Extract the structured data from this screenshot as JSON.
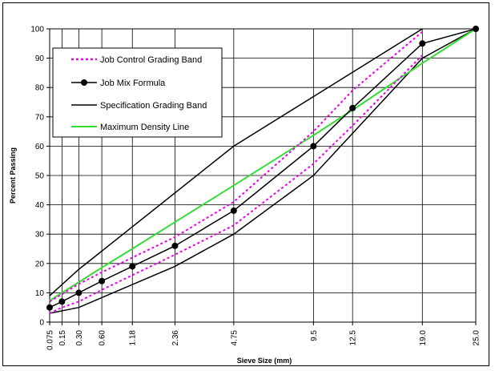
{
  "chart_data": {
    "type": "line",
    "title": "",
    "xlabel": "Sieve Size (mm)",
    "ylabel": "Percent Passing",
    "x_scale": "power 0.45",
    "xlim": [
      0.075,
      25.0
    ],
    "ylim": [
      0,
      100
    ],
    "y_ticks": [
      0,
      10,
      20,
      30,
      40,
      50,
      60,
      70,
      80,
      90,
      100
    ],
    "x_tick_labels": [
      "0.075",
      "0.15",
      "0.30",
      "0.60",
      "1.18",
      "2.36",
      "4.75",
      "9.5",
      "12.5",
      "19.0",
      "25.0"
    ],
    "x_tick_values": [
      0.075,
      0.15,
      0.3,
      0.6,
      1.18,
      2.36,
      4.75,
      9.5,
      12.5,
      19.0,
      25.0
    ],
    "grid": true,
    "legend_position": "upper-left",
    "series": [
      {
        "name": "Job Control Grading Band",
        "style": "dotted",
        "color": "#ee00ee",
        "lines": [
          {
            "x": [
              0.075,
              0.3,
              0.6,
              1.18,
              2.36,
              4.75,
              9.5,
              12.5,
              19.0
            ],
            "y": [
              7,
              13,
              17,
              22,
              29,
              41,
              65,
              79,
              99
            ]
          },
          {
            "x": [
              0.075,
              0.15,
              0.3,
              0.6,
              1.18,
              2.36,
              4.75,
              9.5,
              12.5,
              19.0
            ],
            "y": [
              3,
              5,
              7,
              11,
              16,
              23,
              33,
              54,
              67,
              91
            ]
          }
        ]
      },
      {
        "name": "Job Mix Formula",
        "style": "solid-markers",
        "color": "#000000",
        "x": [
          0.075,
          0.15,
          0.3,
          0.6,
          1.18,
          2.36,
          4.75,
          9.5,
          12.5,
          19.0,
          25.0
        ],
        "y": [
          5,
          7,
          10,
          14,
          19,
          26,
          38,
          60,
          73,
          95,
          100
        ]
      },
      {
        "name": "Specification Grading Band",
        "style": "solid",
        "color": "#000000",
        "lines": [
          {
            "x": [
              0.075,
              0.3,
              4.75,
              19.0
            ],
            "y": [
              9,
              18,
              60,
              100
            ]
          },
          {
            "x": [
              0.075,
              0.3,
              2.36,
              4.75,
              9.5,
              19.0,
              25.0
            ],
            "y": [
              3,
              5,
              19,
              30,
              50,
              90,
              100
            ]
          }
        ]
      },
      {
        "name": "Maximum Density Line",
        "style": "solid",
        "color": "#33dd33",
        "x": [
          0.075,
          0.15,
          0.3,
          0.6,
          1.18,
          2.36,
          4.75,
          9.5,
          12.5,
          19.0,
          25.0
        ],
        "y": [
          7.3,
          10.0,
          13.6,
          18.6,
          25.0,
          34.1,
          46.6,
          63.7,
          72.3,
          88.3,
          100
        ]
      }
    ]
  }
}
